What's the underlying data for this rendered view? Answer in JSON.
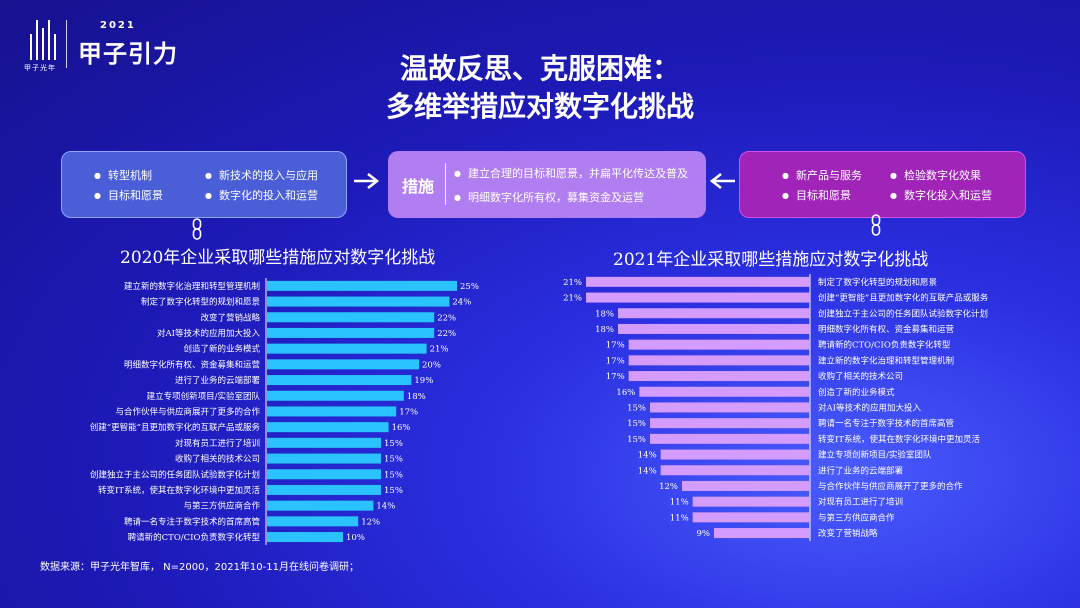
{
  "logo": {
    "name": "甲子光年",
    "year": "2021",
    "title": "甲子引力"
  },
  "headline": {
    "line1": "温故反思、克服困难：",
    "line2": "多维举措应对数字化挑战"
  },
  "left_box": {
    "items": [
      "转型机制",
      "新技术的投入与应用",
      "目标和愿景",
      "数字化的投入和运营"
    ]
  },
  "mid_box": {
    "label": "措施",
    "items": [
      "建立合理的目标和愿景，并扁平化传达及普及",
      "明细数字化所有权，募集资金及运营"
    ]
  },
  "right_box": {
    "items": [
      "新产品与服务",
      "检验数字化效果",
      "目标和愿景",
      "数字化投入和运营"
    ]
  },
  "colors": {
    "bar_2020": "#2bc3ff",
    "bar_2021": "#d49cff",
    "accent_mid": "#b07ef0",
    "accent_right": "#a024b8"
  },
  "source": "数据来源：甲子光年智库， N=2000，2021年10-11月在线问卷调研；",
  "chart_data": [
    {
      "type": "bar",
      "orientation": "horizontal",
      "title": "2020年企业采取哪些措施应对数字化挑战",
      "categories": [
        "建立新的数字化治理和转型管理机制",
        "制定了数字化转型的规划和愿景",
        "改变了营销战略",
        "对AI等技术的应用加大投入",
        "创造了新的业务模式",
        "明细数字化所有权、资金募集和运营",
        "进行了业务的云端部署",
        "建立专项创新项目/实验室团队",
        "与合作伙伴与供应商展开了更多的合作",
        "创建“更智能”且更加数字化的互联产品或服务",
        "对现有员工进行了培训",
        "收购了相关的技术公司",
        "创建独立于主公司的任务团队试验数字化计划",
        "转变IT系统，使其在数字化环境中更加灵活",
        "与第三方供应商合作",
        "聘请一名专注于数字技术的首席高管",
        "聘请新的CTO/CIO负责数字化转型"
      ],
      "values": [
        25,
        24,
        22,
        22,
        21,
        20,
        19,
        18,
        17,
        16,
        15,
        15,
        15,
        15,
        14,
        12,
        10
      ],
      "data_labels": [
        "25%",
        "24%",
        "22%",
        "22%",
        "21%",
        "20%",
        "19%",
        "18%",
        "17%",
        "16%",
        "15%",
        "15%",
        "15%",
        "15%",
        "14%",
        "12%",
        "10%"
      ],
      "xlim": [
        0,
        25
      ],
      "grid": false,
      "legend": "none"
    },
    {
      "type": "bar",
      "orientation": "horizontal",
      "direction": "right-to-left",
      "title": "2021年企业采取哪些措施应对数字化挑战",
      "categories": [
        "制定了数字化转型的规划和愿景",
        "创建“更智能”且更加数字化的互联产品或服务",
        "创建独立于主公司的任务团队试验数字化计划",
        "明细数字化所有权、资金募集和运营",
        "聘请新的CTO/CIO负责数字化转型",
        "建立新的数字化治理和转型管理机制",
        "收购了相关的技术公司",
        "创造了新的业务模式",
        "对AI等技术的应用加大投入",
        "聘请一名专注于数字技术的首席高管",
        "转变IT系统，使其在数字化环境中更加灵活",
        "建立专项创新项目/实验室团队",
        "进行了业务的云端部署",
        "与合作伙伴与供应商展开了更多的合作",
        "对现有员工进行了培训",
        "与第三方供应商合作",
        "改变了营销战略"
      ],
      "values": [
        21,
        21,
        18,
        18,
        17,
        17,
        17,
        16,
        15,
        15,
        15,
        14,
        14,
        12,
        11,
        11,
        9
      ],
      "data_labels": [
        "21%",
        "21%",
        "18%",
        "18%",
        "17%",
        "17%",
        "17%",
        "16%",
        "15%",
        "15%",
        "15%",
        "14%",
        "14%",
        "12%",
        "11%",
        "11%",
        "9%"
      ],
      "xlim": [
        0,
        21
      ],
      "grid": false,
      "legend": "none"
    }
  ]
}
